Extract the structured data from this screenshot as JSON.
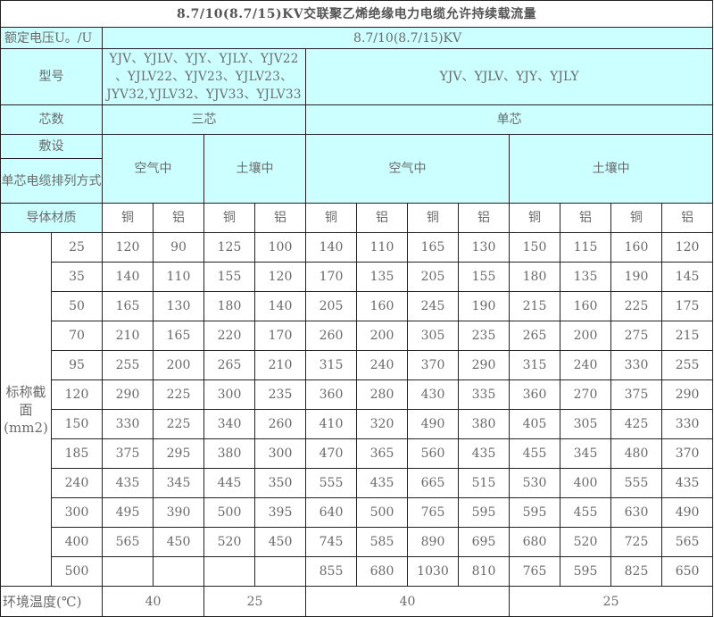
{
  "title": "8.7/10(8.7/15)KV交联聚乙烯绝缘电力电缆允许持续载流量",
  "rated_voltage": {
    "label": "额定电压U。/U",
    "value": "8.7/10(8.7/15)KV"
  },
  "model": {
    "label": "型号",
    "three_core_lines": [
      "YJV、YJLV、YJY、YJLY、YJV22",
      "、YJLV22、YJV23、YJLV23、",
      "JYV32,YJLV32、YJV33、YJLV33"
    ],
    "single_core": "YJV、YJLV、YJY、YJLY"
  },
  "cores": {
    "label": "芯数",
    "three": "三芯",
    "single": "单芯"
  },
  "laying": {
    "label": "敷设",
    "arrangement_label": "单芯电缆排列方式",
    "air": "空气中",
    "soil": "土壤中"
  },
  "material": {
    "label": "导体材质",
    "copper": "铜",
    "aluminum": "铝"
  },
  "section_label": "标称截面(mm2)",
  "rows": [
    {
      "size": "25",
      "v": [
        "120",
        "90",
        "125",
        "100",
        "140",
        "110",
        "165",
        "130",
        "150",
        "115",
        "160",
        "120"
      ]
    },
    {
      "size": "35",
      "v": [
        "140",
        "110",
        "155",
        "120",
        "170",
        "135",
        "205",
        "155",
        "180",
        "135",
        "190",
        "145"
      ]
    },
    {
      "size": "50",
      "v": [
        "165",
        "130",
        "180",
        "140",
        "205",
        "160",
        "245",
        "190",
        "215",
        "160",
        "225",
        "175"
      ]
    },
    {
      "size": "70",
      "v": [
        "210",
        "165",
        "220",
        "170",
        "260",
        "200",
        "305",
        "235",
        "265",
        "200",
        "275",
        "215"
      ]
    },
    {
      "size": "95",
      "v": [
        "255",
        "200",
        "265",
        "210",
        "315",
        "240",
        "370",
        "290",
        "315",
        "240",
        "330",
        "255"
      ]
    },
    {
      "size": "120",
      "v": [
        "290",
        "225",
        "300",
        "235",
        "360",
        "280",
        "430",
        "335",
        "360",
        "270",
        "375",
        "290"
      ]
    },
    {
      "size": "150",
      "v": [
        "330",
        "225",
        "340",
        "260",
        "410",
        "320",
        "490",
        "380",
        "405",
        "305",
        "425",
        "330"
      ]
    },
    {
      "size": "185",
      "v": [
        "375",
        "295",
        "380",
        "300",
        "470",
        "365",
        "560",
        "435",
        "455",
        "345",
        "480",
        "370"
      ]
    },
    {
      "size": "240",
      "v": [
        "435",
        "345",
        "445",
        "350",
        "555",
        "435",
        "665",
        "515",
        "530",
        "400",
        "555",
        "435"
      ]
    },
    {
      "size": "300",
      "v": [
        "495",
        "390",
        "500",
        "395",
        "640",
        "500",
        "765",
        "595",
        "595",
        "455",
        "630",
        "490"
      ]
    },
    {
      "size": "400",
      "v": [
        "565",
        "450",
        "520",
        "450",
        "745",
        "585",
        "890",
        "695",
        "680",
        "520",
        "725",
        "565"
      ]
    },
    {
      "size": "500",
      "v": [
        "",
        "",
        "",
        "",
        "855",
        "680",
        "1030",
        "810",
        "765",
        "595",
        "825",
        "650"
      ]
    }
  ],
  "ambient": {
    "label": "环境温度(℃)",
    "values": [
      "40",
      "25",
      "40",
      "25"
    ]
  }
}
